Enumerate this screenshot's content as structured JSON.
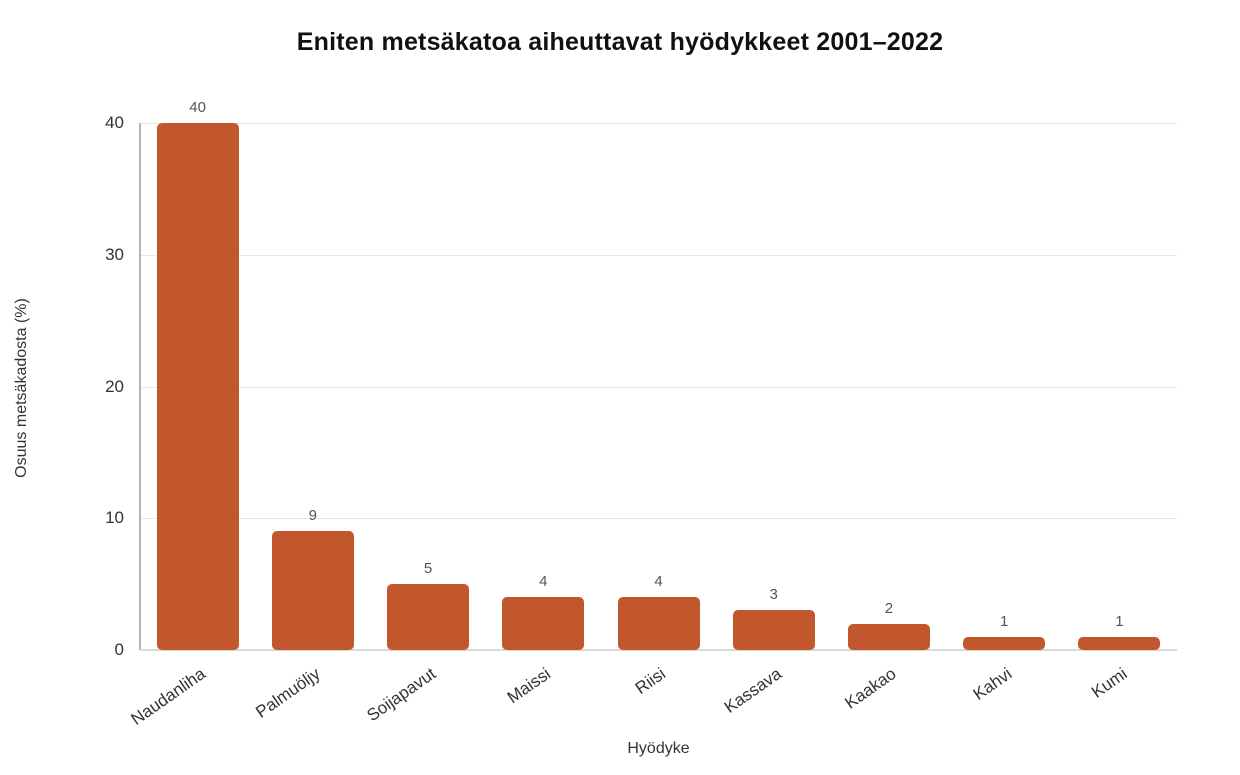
{
  "chart_data": {
    "type": "bar",
    "title": "Eniten metsäkatoa aiheuttavat hyödykkeet 2001–2022",
    "xlabel": "Hyödyke",
    "ylabel": "Osuus metsäkadosta (%)",
    "categories": [
      "Naudanliha",
      "Palmuöljy",
      "Soijapavut",
      "Maissi",
      "Riisi",
      "Kassava",
      "Kaakao",
      "Kahvi",
      "Kumi"
    ],
    "values": [
      40,
      9,
      5,
      4,
      4,
      3,
      2,
      1,
      1
    ],
    "value_labels": [
      "40",
      "9",
      "5",
      "4",
      "4",
      "3",
      "2",
      "1",
      "1"
    ],
    "ylim": [
      0,
      40
    ],
    "yticks": [
      0,
      10,
      20,
      30,
      40
    ],
    "grid": true,
    "legend": "none",
    "bar_color": "#c2562c",
    "grid_color": "#e8e8e8",
    "y_axis_line_color": "#b3b3b3",
    "baseline_color": "#d9d9d9",
    "tick_label_color": "#333333",
    "value_label_color": "#545454",
    "title_color": "#111111",
    "x_label_rotation_deg": -35
  }
}
